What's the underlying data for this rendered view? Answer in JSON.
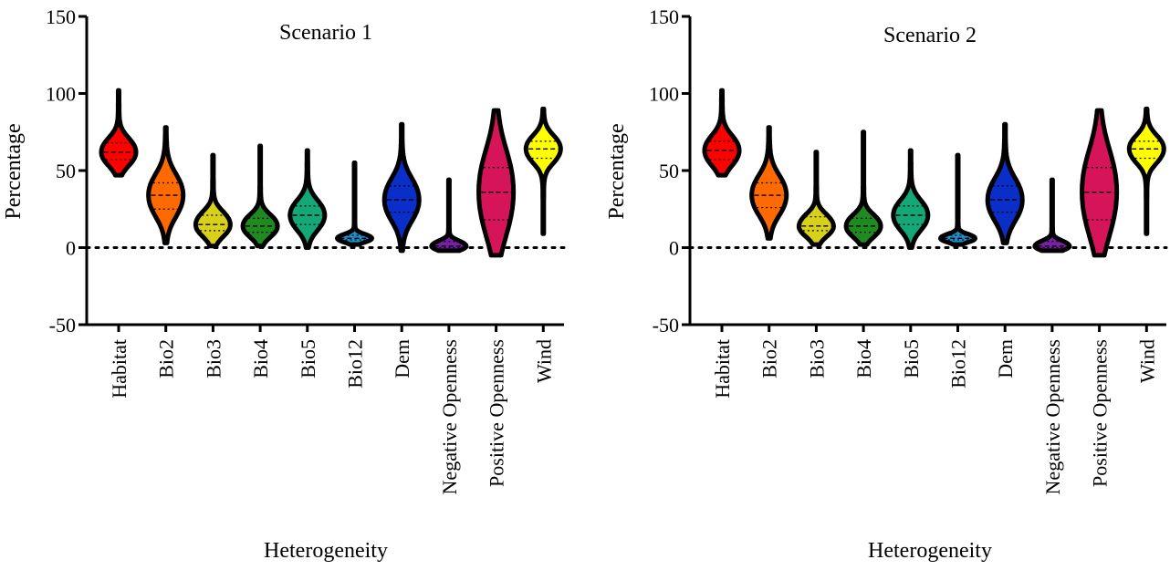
{
  "chart_data": [
    {
      "type": "violin",
      "title": "Scenario 1",
      "xlabel": "Heterogeneity",
      "ylabel": "Percentage",
      "ylim": [
        -50,
        150
      ],
      "yticks": [
        -50,
        0,
        50,
        100,
        150
      ],
      "reference_line": 0,
      "categories": [
        "Habitat",
        "Bio2",
        "Bio3",
        "Bio4",
        "Bio5",
        "Bio12",
        "Dem",
        "Negative Openness",
        "Positive Openness",
        "Wind"
      ],
      "colors": [
        "#ff0000",
        "#ff6a00",
        "#d9d01a",
        "#1f8a1f",
        "#14a878",
        "#1f8fc8",
        "#0a2ec8",
        "#7a1fa8",
        "#d6145a",
        "#ffff00"
      ],
      "violins": [
        {
          "min": 47,
          "max": 102,
          "q1": 57,
          "median": 62,
          "q3": 68
        },
        {
          "min": 3,
          "max": 78,
          "q1": 25,
          "median": 34,
          "q3": 42
        },
        {
          "min": 1,
          "max": 60,
          "q1": 11,
          "median": 15,
          "q3": 21
        },
        {
          "min": 1,
          "max": 66,
          "q1": 10,
          "median": 14,
          "q3": 19
        },
        {
          "min": 0,
          "max": 63,
          "q1": 15,
          "median": 21,
          "q3": 27
        },
        {
          "min": 2,
          "max": 55,
          "q1": 5,
          "median": 6,
          "q3": 8
        },
        {
          "min": -2,
          "max": 80,
          "q1": 23,
          "median": 31,
          "q3": 40
        },
        {
          "min": -2,
          "max": 44,
          "q1": 0,
          "median": 1,
          "q3": 4
        },
        {
          "min": -5,
          "max": 89,
          "q1": 18,
          "median": 36,
          "q3": 52
        },
        {
          "min": 9,
          "max": 90,
          "q1": 58,
          "median": 64,
          "q3": 69
        }
      ]
    },
    {
      "type": "violin",
      "title": "Scenario 2",
      "xlabel": "Heterogeneity",
      "ylabel": "Percentage",
      "ylim": [
        -50,
        150
      ],
      "yticks": [
        -50,
        0,
        50,
        100,
        150
      ],
      "reference_line": 0,
      "categories": [
        "Habitat",
        "Bio2",
        "Bio3",
        "Bio4",
        "Bio5",
        "Bio12",
        "Dem",
        "Negative Openness",
        "Positive Openness",
        "Wind"
      ],
      "colors": [
        "#ff0000",
        "#ff6a00",
        "#d9d01a",
        "#1f8a1f",
        "#14a878",
        "#1f8fc8",
        "#0a2ec8",
        "#7a1fa8",
        "#d6145a",
        "#ffff00"
      ],
      "violins": [
        {
          "min": 47,
          "max": 102,
          "q1": 57,
          "median": 63,
          "q3": 69
        },
        {
          "min": 6,
          "max": 78,
          "q1": 26,
          "median": 34,
          "q3": 42
        },
        {
          "min": 2,
          "max": 62,
          "q1": 11,
          "median": 14,
          "q3": 20
        },
        {
          "min": 2,
          "max": 75,
          "q1": 10,
          "median": 14,
          "q3": 19
        },
        {
          "min": 0,
          "max": 63,
          "q1": 15,
          "median": 21,
          "q3": 27
        },
        {
          "min": 2,
          "max": 60,
          "q1": 5,
          "median": 6,
          "q3": 8
        },
        {
          "min": 3,
          "max": 80,
          "q1": 23,
          "median": 31,
          "q3": 40
        },
        {
          "min": -2,
          "max": 44,
          "q1": 0,
          "median": 1,
          "q3": 4
        },
        {
          "min": -5,
          "max": 89,
          "q1": 18,
          "median": 36,
          "q3": 52
        },
        {
          "min": 9,
          "max": 90,
          "q1": 58,
          "median": 64,
          "q3": 69
        }
      ]
    }
  ]
}
